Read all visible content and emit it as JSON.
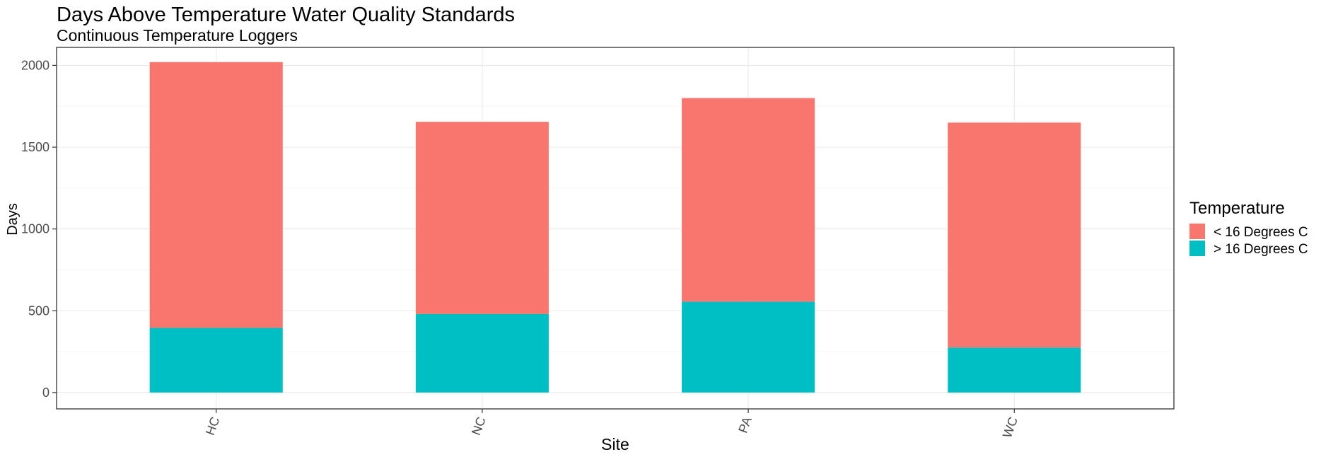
{
  "chart_data": {
    "type": "bar",
    "stacked": true,
    "title": "Days Above Temperature Water Quality Standards",
    "subtitle": "Continuous Temperature Loggers",
    "xlabel": "Site",
    "ylabel": "Days",
    "categories": [
      "HC",
      "NC",
      "PA",
      "WC"
    ],
    "yticks": [
      0,
      500,
      1000,
      1500,
      2000
    ],
    "ylim": [
      -100,
      2110
    ],
    "grid": true,
    "legend": {
      "title": "Temperature",
      "position": "right"
    },
    "series": [
      {
        "name": "> 16 Degrees C",
        "color": "#00BFC4",
        "values": [
          395,
          480,
          555,
          275
        ]
      },
      {
        "name": "< 16 Degrees C",
        "color": "#F8766D",
        "values": [
          1625,
          1175,
          1245,
          1375
        ]
      }
    ],
    "legend_order": [
      1,
      0
    ]
  }
}
